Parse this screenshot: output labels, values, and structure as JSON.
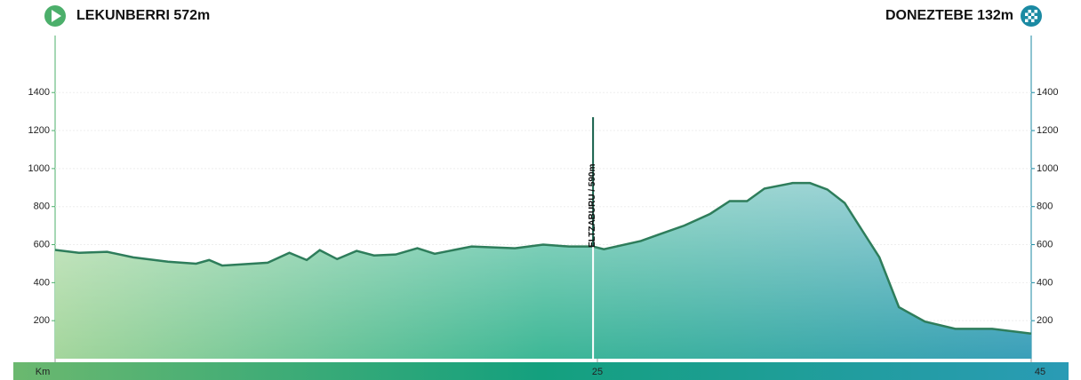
{
  "chart_data": {
    "type": "area",
    "start": "LEKUNBERRI 572m",
    "finish": "DONEZTEBE 132m",
    "x": [
      0,
      1.1,
      2.4,
      3.6,
      5.2,
      6.5,
      7.1,
      7.7,
      9.8,
      10.8,
      11.6,
      12.2,
      13.0,
      13.9,
      14.7,
      15.7,
      16.7,
      17.5,
      19.2,
      21.2,
      22.5,
      23.7,
      24.8,
      25.3,
      27.0,
      27.8,
      29.0,
      30.2,
      31.1,
      31.9,
      32.7,
      34.0,
      34.8,
      35.6,
      36.4,
      37.2,
      38.0,
      38.9,
      40.1,
      41.5,
      43.2,
      45.0
    ],
    "values": [
      572,
      557,
      562,
      533,
      510,
      500,
      519,
      490,
      505,
      557,
      519,
      571,
      524,
      567,
      543,
      548,
      581,
      552,
      590,
      581,
      600,
      590,
      590,
      576,
      619,
      652,
      700,
      762,
      829,
      829,
      895,
      924,
      924,
      890,
      819,
      676,
      533,
      271,
      195,
      157,
      157,
      132
    ],
    "xlim": [
      0,
      45
    ],
    "xticks": [
      {
        "value": 0,
        "label": "Km"
      },
      25,
      45
    ],
    "ylim": [
      0,
      1700
    ],
    "yticks": [
      200,
      400,
      600,
      800,
      1000,
      1200,
      1400
    ],
    "grid": true,
    "annotations": [
      {
        "x": 24.8,
        "y": 590,
        "label": "ELTZABURU / 590m"
      }
    ]
  }
}
